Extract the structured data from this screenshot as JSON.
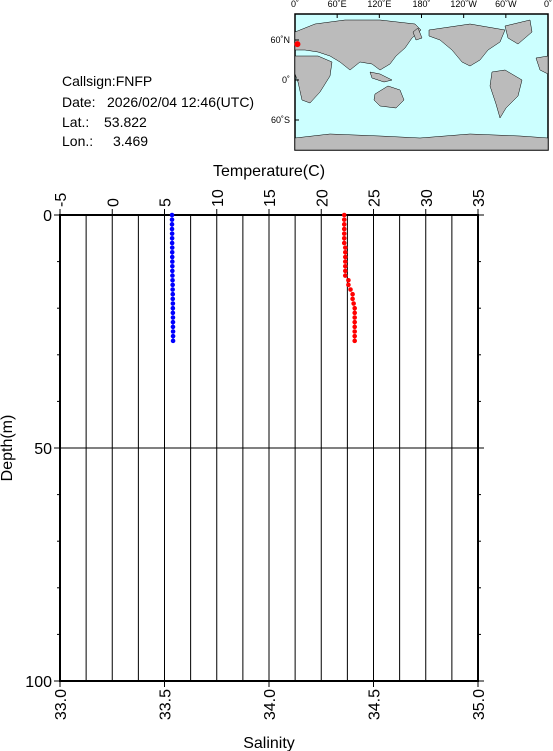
{
  "info": {
    "callsign": "Callsign:FNFP",
    "date_label": "Date:",
    "date": "2026/02/04 12:46(UTC)",
    "lat_label": "Lat.:",
    "lat": 53.822,
    "lon_label": "Lon.:",
    "lon": 3.469
  },
  "map": {
    "lon_labels": [
      "0˚",
      "60˚E",
      "120˚E",
      "180˚",
      "120˚W",
      "60˚W",
      "0˚"
    ],
    "lat_labels": [
      "60˚N",
      "0˚",
      "60˚S"
    ]
  },
  "chart_data": {
    "type": "profile",
    "y_label": "Depth(m)",
    "depth": [
      0,
      1,
      2,
      3,
      4,
      5,
      6,
      7,
      8,
      9,
      10,
      11,
      12,
      13,
      14,
      15,
      16,
      17,
      18,
      19,
      20,
      21,
      22,
      23,
      24,
      25,
      26,
      27
    ],
    "ylim": [
      0,
      100
    ],
    "yticks": [
      0,
      50,
      100
    ],
    "yminorticks": [
      10,
      20,
      30,
      40,
      60,
      70,
      80,
      90
    ],
    "series": [
      {
        "name": "Temperature(C)",
        "color": "#0000ff",
        "axis": "x",
        "values": [
          5.72,
          5.72,
          5.72,
          5.72,
          5.73,
          5.73,
          5.73,
          5.74,
          5.74,
          5.74,
          5.75,
          5.75,
          5.75,
          5.76,
          5.77,
          5.78,
          5.78,
          5.79,
          5.79,
          5.8,
          5.8,
          5.8,
          5.81,
          5.81,
          5.81,
          5.82,
          5.82,
          5.82
        ]
      },
      {
        "name": "Salinity",
        "color": "#ff0000",
        "axis": "x2",
        "values": [
          34.36,
          34.36,
          34.36,
          34.36,
          34.36,
          34.36,
          34.36,
          34.365,
          34.365,
          34.365,
          34.365,
          34.365,
          34.365,
          34.365,
          34.38,
          34.38,
          34.39,
          34.4,
          34.4,
          34.405,
          34.41,
          34.41,
          34.41,
          34.41,
          34.41,
          34.41,
          34.41,
          34.41
        ]
      }
    ],
    "xlim": [
      -5,
      35
    ],
    "xticks": [
      -5,
      0,
      5,
      10,
      15,
      20,
      25,
      30,
      35
    ],
    "x_grid": [
      -2.5,
      0,
      2.5,
      5,
      7.5,
      10,
      12.5,
      15,
      17.5,
      20,
      22.5,
      25,
      27.5,
      30,
      32.5
    ],
    "x2lim": [
      33,
      35
    ],
    "x2ticks": [
      {
        "value": 33,
        "label": "33.0"
      },
      {
        "value": 33.5,
        "label": "33.5"
      },
      {
        "value": 34,
        "label": "34.0"
      },
      {
        "value": 34.5,
        "label": "34.5"
      },
      {
        "value": 35,
        "label": "35.0"
      }
    ],
    "y_grid": [
      50
    ]
  }
}
